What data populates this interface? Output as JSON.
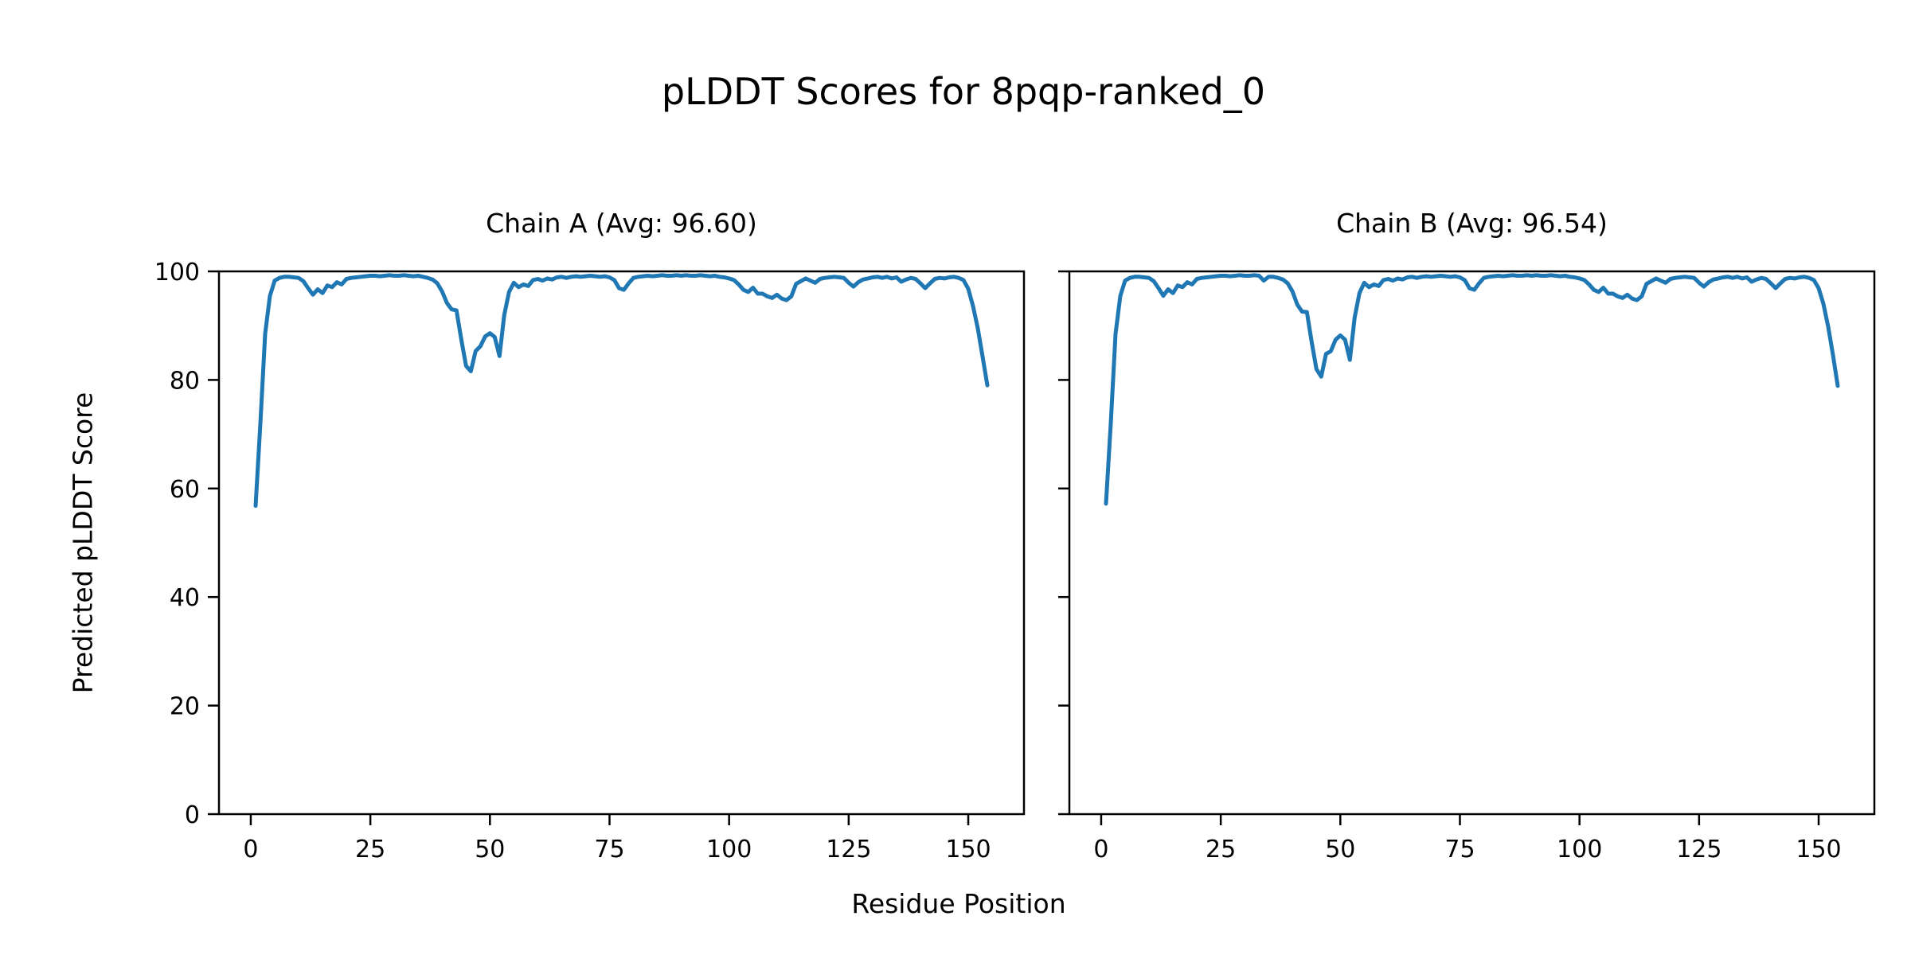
{
  "figure": {
    "title": "pLDDT Scores for 8pqp-ranked_0",
    "xlabel": "Residue Position",
    "ylabel": "Predicted pLDDT Score",
    "background_color": "#ffffff",
    "line_color": "#1f77b4",
    "axis_color": "#000000"
  },
  "chart_data": [
    {
      "type": "line",
      "title": "Chain A (Avg: 96.60)",
      "chain": "A",
      "avg_plddt": 96.6,
      "legend": "none",
      "grid": false,
      "xlim": [
        -6.65,
        161.65
      ],
      "ylim": [
        0,
        100
      ],
      "xticks": [
        0,
        25,
        50,
        75,
        100,
        125,
        150
      ],
      "yticks": [
        0,
        20,
        40,
        60,
        80,
        100
      ],
      "show_ytick_labels": true,
      "x_start": 1,
      "values": [
        56.8,
        72.0,
        88.5,
        95.5,
        98.3,
        98.8,
        99.0,
        99.0,
        98.9,
        98.8,
        98.2,
        96.9,
        95.7,
        96.7,
        96.0,
        97.4,
        97.1,
        98.0,
        97.6,
        98.6,
        98.8,
        98.9,
        99.0,
        99.1,
        99.2,
        99.2,
        99.1,
        99.2,
        99.3,
        99.2,
        99.2,
        99.3,
        99.2,
        99.1,
        99.2,
        99.0,
        98.8,
        98.5,
        97.8,
        96.3,
        94.2,
        93.0,
        92.8,
        87.5,
        82.6,
        81.6,
        85.3,
        86.2,
        88.0,
        88.6,
        87.9,
        84.4,
        92.0,
        96.2,
        97.9,
        97.1,
        97.6,
        97.3,
        98.4,
        98.6,
        98.3,
        98.7,
        98.5,
        98.9,
        99.0,
        98.8,
        99.0,
        99.1,
        99.0,
        99.1,
        99.2,
        99.1,
        99.0,
        99.1,
        98.9,
        98.4,
        96.9,
        96.6,
        97.8,
        98.8,
        99.0,
        99.1,
        99.2,
        99.1,
        99.2,
        99.3,
        99.2,
        99.2,
        99.3,
        99.2,
        99.3,
        99.2,
        99.2,
        99.3,
        99.2,
        99.1,
        99.2,
        99.0,
        98.9,
        98.7,
        98.4,
        97.6,
        96.6,
        96.2,
        97.0,
        95.9,
        95.9,
        95.4,
        95.1,
        95.7,
        95.0,
        94.7,
        95.4,
        97.7,
        98.2,
        98.7,
        98.3,
        97.9,
        98.6,
        98.8,
        98.9,
        99.0,
        98.9,
        98.8,
        97.9,
        97.2,
        98.0,
        98.5,
        98.7,
        98.9,
        99.0,
        98.8,
        99.0,
        98.7,
        98.9,
        98.1,
        98.5,
        98.8,
        98.6,
        97.8,
        96.9,
        97.8,
        98.6,
        98.8,
        98.7,
        98.9,
        99.0,
        98.8,
        98.4,
        96.8,
        93.6,
        89.5,
        84.3,
        79.0
      ]
    },
    {
      "type": "line",
      "title": "Chain B (Avg: 96.54)",
      "chain": "B",
      "avg_plddt": 96.54,
      "legend": "none",
      "grid": false,
      "xlim": [
        -6.65,
        161.65
      ],
      "ylim": [
        0,
        100
      ],
      "xticks": [
        0,
        25,
        50,
        75,
        100,
        125,
        150
      ],
      "yticks": [
        0,
        20,
        40,
        60,
        80,
        100
      ],
      "show_ytick_labels": false,
      "x_start": 1,
      "values": [
        57.2,
        72.0,
        88.5,
        95.5,
        98.3,
        98.8,
        99.0,
        99.0,
        98.9,
        98.8,
        98.2,
        96.9,
        95.5,
        96.7,
        96.0,
        97.4,
        97.1,
        98.0,
        97.6,
        98.6,
        98.8,
        98.9,
        99.0,
        99.1,
        99.2,
        99.2,
        99.1,
        99.2,
        99.3,
        99.2,
        99.2,
        99.3,
        99.2,
        98.3,
        99.0,
        99.0,
        98.8,
        98.5,
        97.8,
        96.3,
        93.9,
        92.6,
        92.5,
        87.0,
        82.0,
        80.6,
        84.8,
        85.3,
        87.4,
        88.2,
        87.4,
        83.7,
        91.5,
        96.0,
        97.9,
        97.1,
        97.6,
        97.3,
        98.4,
        98.6,
        98.3,
        98.7,
        98.5,
        98.9,
        99.0,
        98.8,
        99.0,
        99.1,
        99.0,
        99.1,
        99.2,
        99.1,
        99.0,
        99.1,
        98.9,
        98.4,
        96.9,
        96.6,
        97.8,
        98.8,
        99.0,
        99.1,
        99.2,
        99.1,
        99.2,
        99.3,
        99.2,
        99.2,
        99.3,
        99.2,
        99.3,
        99.2,
        99.2,
        99.3,
        99.2,
        99.1,
        99.2,
        99.0,
        98.9,
        98.7,
        98.4,
        97.6,
        96.6,
        96.2,
        97.0,
        95.9,
        95.9,
        95.4,
        95.1,
        95.7,
        95.0,
        94.7,
        95.4,
        97.7,
        98.2,
        98.7,
        98.3,
        97.9,
        98.6,
        98.8,
        98.9,
        99.0,
        98.9,
        98.8,
        97.9,
        97.2,
        98.0,
        98.5,
        98.7,
        98.9,
        99.0,
        98.8,
        99.0,
        98.7,
        98.9,
        98.1,
        98.5,
        98.8,
        98.6,
        97.8,
        96.9,
        97.8,
        98.6,
        98.8,
        98.7,
        98.9,
        99.0,
        98.8,
        98.4,
        96.9,
        94.0,
        89.8,
        84.6,
        78.9
      ]
    }
  ]
}
